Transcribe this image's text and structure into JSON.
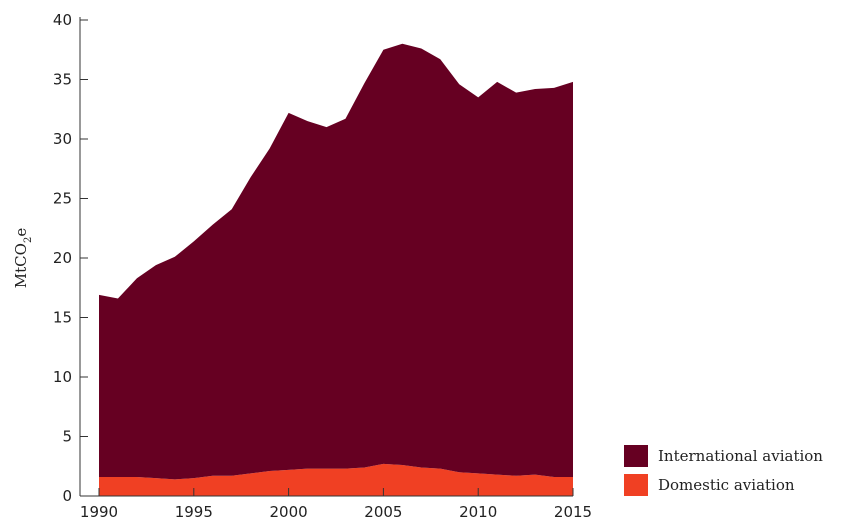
{
  "chart_data": {
    "type": "area",
    "stacked": true,
    "x": [
      1990,
      1991,
      1992,
      1993,
      1994,
      1995,
      1996,
      1997,
      1998,
      1999,
      2000,
      2001,
      2002,
      2003,
      2004,
      2005,
      2006,
      2007,
      2008,
      2009,
      2010,
      2011,
      2012,
      2013,
      2014,
      2015
    ],
    "series": [
      {
        "name": "Domestic aviation",
        "color": "#f04023",
        "values": [
          1.6,
          1.6,
          1.6,
          1.5,
          1.4,
          1.5,
          1.7,
          1.7,
          1.9,
          2.1,
          2.2,
          2.3,
          2.3,
          2.3,
          2.4,
          2.7,
          2.6,
          2.4,
          2.3,
          2.0,
          1.9,
          1.8,
          1.7,
          1.8,
          1.6,
          1.6
        ]
      },
      {
        "name": "International aviation",
        "color": "#660022",
        "values": [
          15.3,
          15.0,
          16.7,
          17.9,
          18.7,
          19.9,
          21.1,
          22.4,
          24.9,
          27.1,
          30.0,
          29.2,
          28.7,
          29.4,
          32.3,
          34.8,
          35.4,
          35.2,
          34.4,
          32.6,
          31.6,
          33.0,
          32.2,
          32.4,
          32.7,
          33.2
        ]
      }
    ],
    "ylabel": "MtCO",
    "ylabel_sub": "2",
    "ylabel_suffix": "e",
    "ylim": [
      0,
      40
    ],
    "yticks": [
      0,
      5,
      10,
      15,
      20,
      25,
      30,
      35,
      40
    ],
    "xticks": [
      1990,
      1995,
      2000,
      2005,
      2010,
      2015
    ],
    "xlim": [
      1990,
      2015
    ],
    "grid": false,
    "legend_position": "bottom-right",
    "legend_order": [
      "International aviation",
      "Domestic aviation"
    ]
  }
}
